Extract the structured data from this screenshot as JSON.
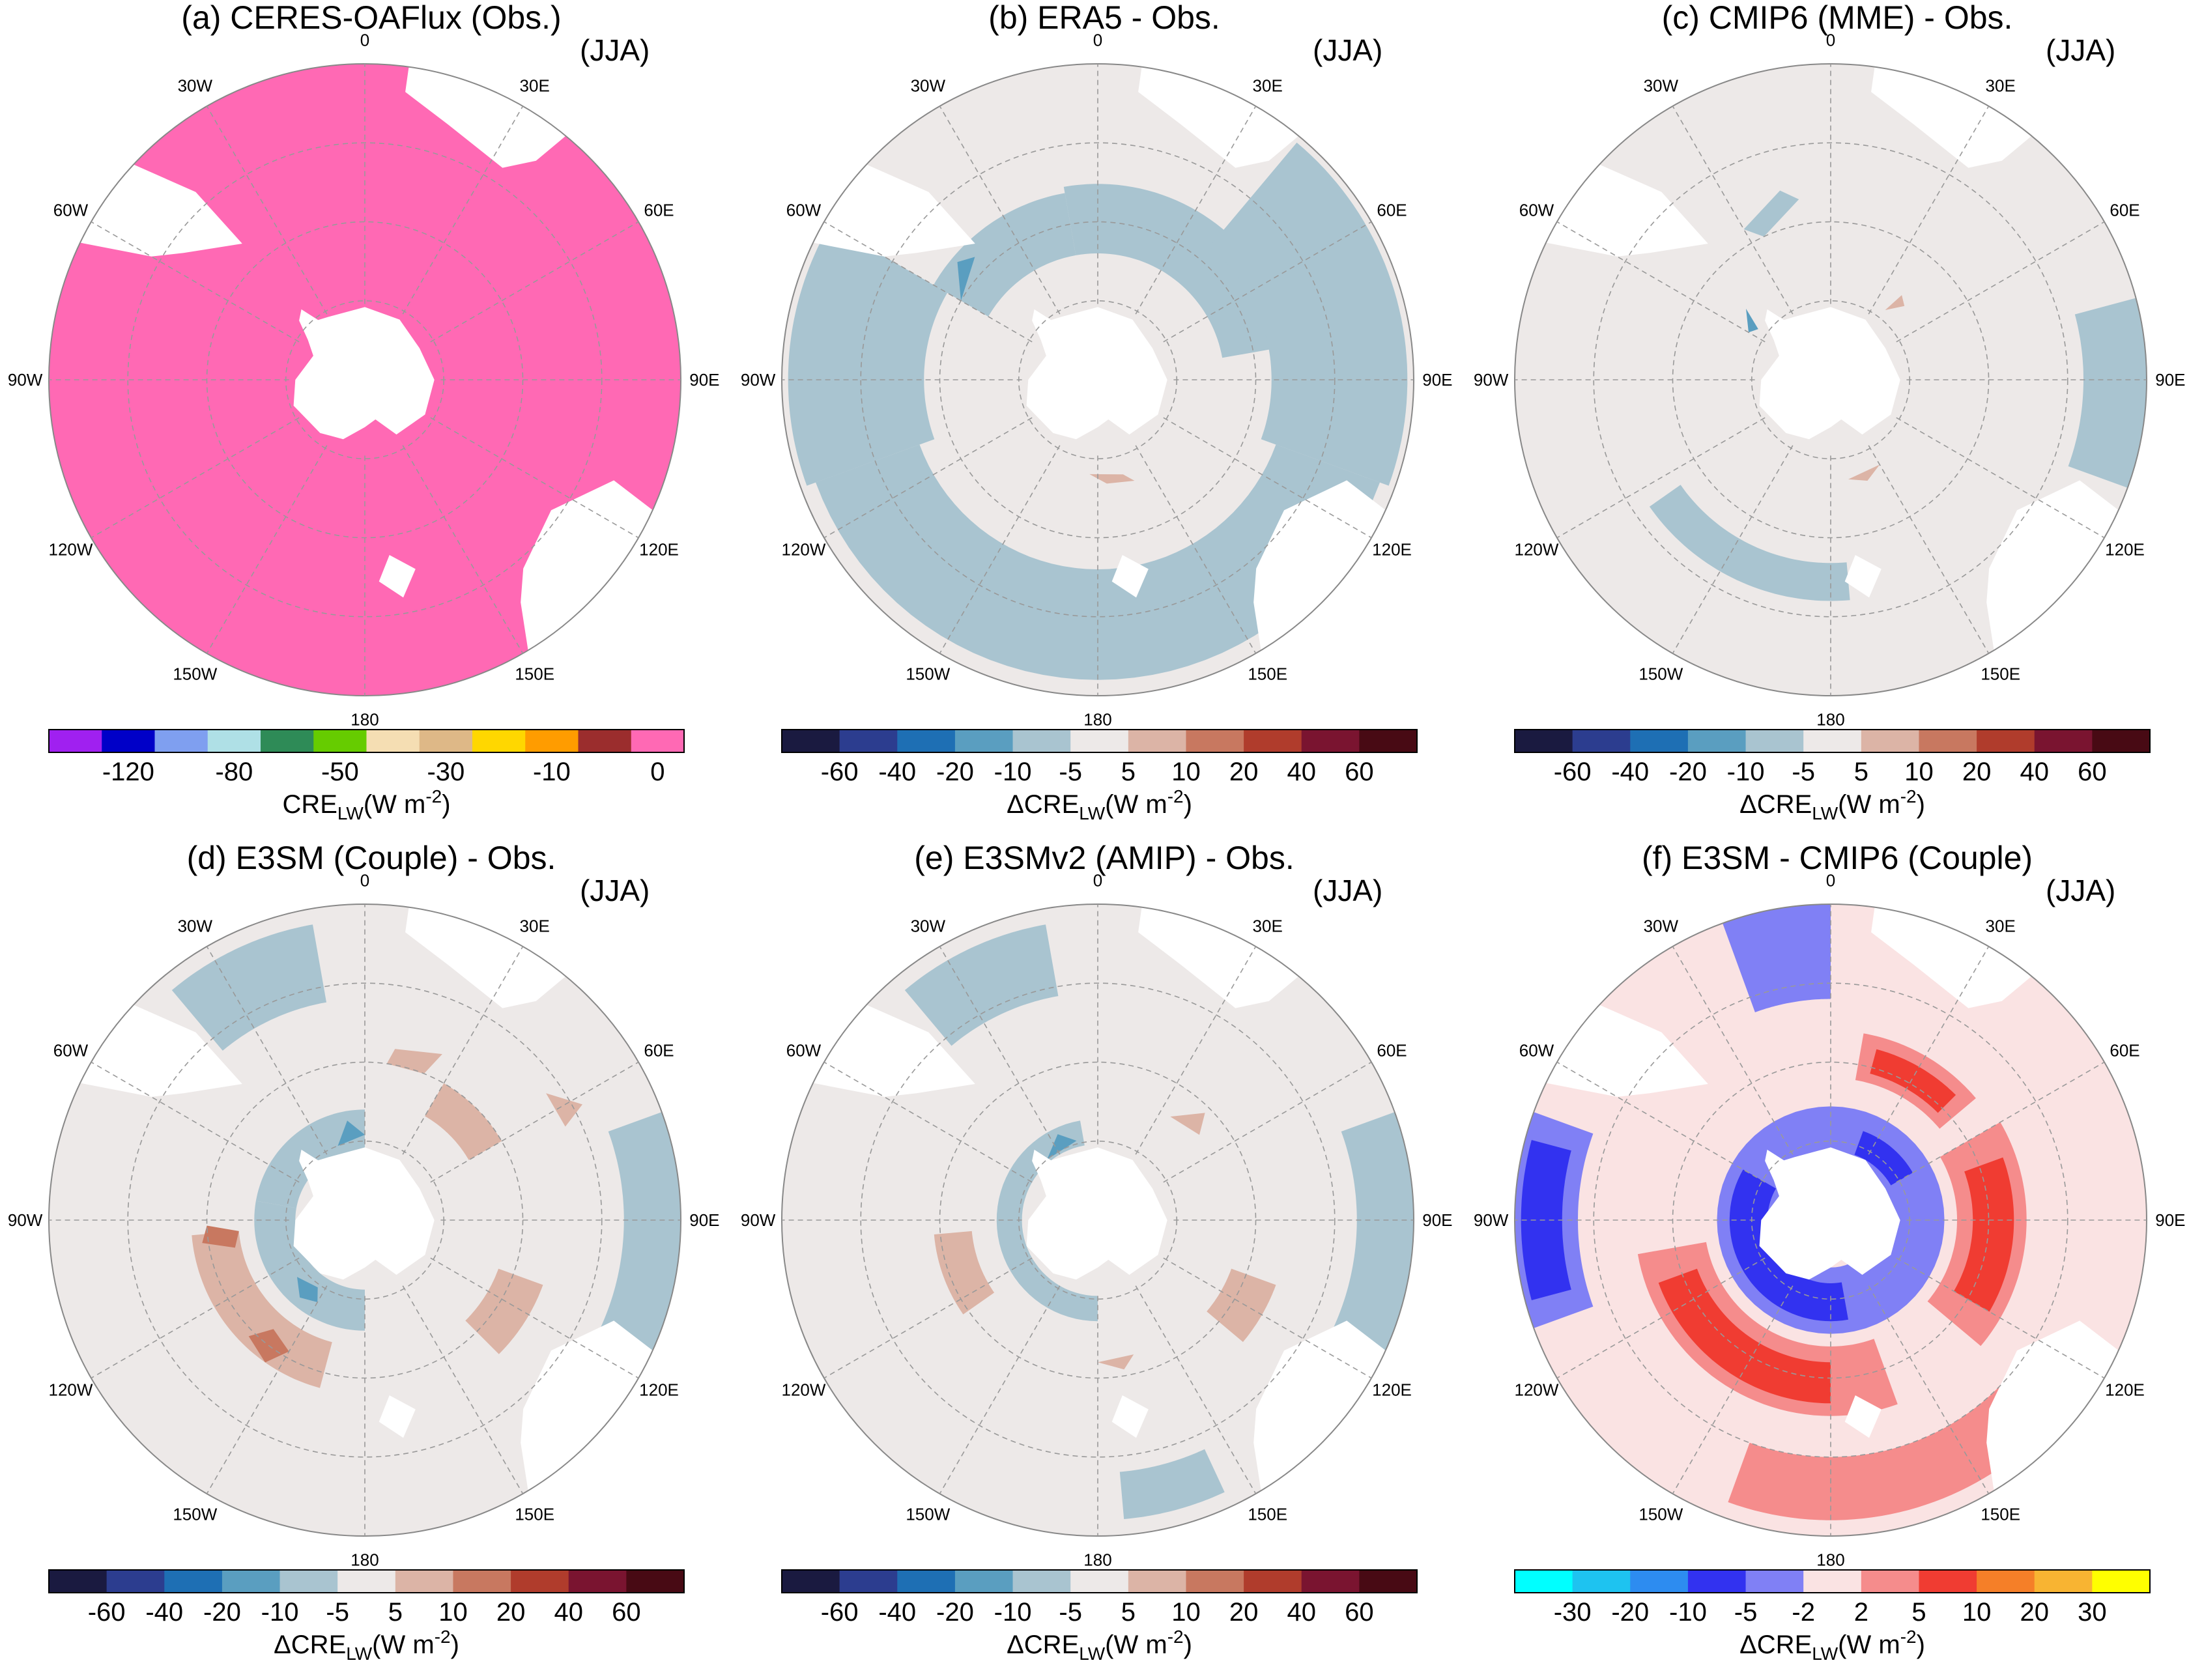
{
  "figure": {
    "panels": [
      {
        "id": "a",
        "title": "(a) CERES-OAFlux (Obs.)",
        "season": "(JJA)",
        "colorbar": {
          "ticks": [
            "-120",
            "-80",
            "-50",
            "-30",
            "-10",
            "0"
          ],
          "label_prefix": "CRE",
          "label_sub": "LW",
          "label_units": "(W m",
          "label_exp": "-2",
          "label_close": ")",
          "colors": [
            "#a020f0",
            "#0000c8",
            "#7f9ff0",
            "#afe0e6",
            "#2e8b57",
            "#66cc00",
            "#f5deb3",
            "#deb887",
            "#ffd700",
            "#ff9c00",
            "#9b2d2d",
            "#ff69b4"
          ]
        },
        "fill_color": "#ff69b4"
      },
      {
        "id": "b",
        "title": "(b) ERA5 - Obs.",
        "season": "(JJA)",
        "colorbar": {
          "ticks": [
            "-60",
            "-40",
            "-20",
            "-10",
            "-5",
            "5",
            "10",
            "20",
            "40",
            "60"
          ],
          "label_prefix": "ΔCRE",
          "label_sub": "LW",
          "label_units": "(W m",
          "label_exp": "-2",
          "label_close": ")",
          "colors": [
            "#1a1a40",
            "#2c3d8f",
            "#1e6fb4",
            "#5a9ec0",
            "#a9c4d0",
            "#ede9e8",
            "#dcb4a6",
            "#c87860",
            "#b03c2c",
            "#7a1430",
            "#480a14"
          ]
        }
      },
      {
        "id": "c",
        "title": "(c) CMIP6 (MME) - Obs.",
        "season": "(JJA)",
        "colorbar": {
          "ticks": [
            "-60",
            "-40",
            "-20",
            "-10",
            "-5",
            "5",
            "10",
            "20",
            "40",
            "60"
          ],
          "label_prefix": "ΔCRE",
          "label_sub": "LW",
          "label_units": "(W m",
          "label_exp": "-2",
          "label_close": ")",
          "colors": [
            "#1a1a40",
            "#2c3d8f",
            "#1e6fb4",
            "#5a9ec0",
            "#a9c4d0",
            "#ede9e8",
            "#dcb4a6",
            "#c87860",
            "#b03c2c",
            "#7a1430",
            "#480a14"
          ]
        }
      },
      {
        "id": "d",
        "title": "(d) E3SM (Couple) - Obs.",
        "season": "(JJA)",
        "colorbar": {
          "ticks": [
            "-60",
            "-40",
            "-20",
            "-10",
            "-5",
            "5",
            "10",
            "20",
            "40",
            "60"
          ],
          "label_prefix": "ΔCRE",
          "label_sub": "LW",
          "label_units": "(W m",
          "label_exp": "-2",
          "label_close": ")",
          "colors": [
            "#1a1a40",
            "#2c3d8f",
            "#1e6fb4",
            "#5a9ec0",
            "#a9c4d0",
            "#ede9e8",
            "#dcb4a6",
            "#c87860",
            "#b03c2c",
            "#7a1430",
            "#480a14"
          ]
        }
      },
      {
        "id": "e",
        "title": "(e) E3SMv2 (AMIP) - Obs.",
        "season": "(JJA)",
        "colorbar": {
          "ticks": [
            "-60",
            "-40",
            "-20",
            "-10",
            "-5",
            "5",
            "10",
            "20",
            "40",
            "60"
          ],
          "label_prefix": "ΔCRE",
          "label_sub": "LW",
          "label_units": "(W m",
          "label_exp": "-2",
          "label_close": ")",
          "colors": [
            "#1a1a40",
            "#2c3d8f",
            "#1e6fb4",
            "#5a9ec0",
            "#a9c4d0",
            "#ede9e8",
            "#dcb4a6",
            "#c87860",
            "#b03c2c",
            "#7a1430",
            "#480a14"
          ]
        }
      },
      {
        "id": "f",
        "title": "(f) E3SM - CMIP6 (Couple)",
        "season": "(JJA)",
        "colorbar": {
          "ticks": [
            "-30",
            "-20",
            "-10",
            "-5",
            "-2",
            "2",
            "5",
            "10",
            "20",
            "30"
          ],
          "label_prefix": "ΔCRE",
          "label_sub": "LW",
          "label_units": "(W m",
          "label_exp": "-2",
          "label_close": ")",
          "colors": [
            "#00ffff",
            "#1ec3f0",
            "#2d8cf0",
            "#3232f0",
            "#8080f5",
            "#fae3e3",
            "#f58c8c",
            "#f03c32",
            "#f57f28",
            "#f8b432",
            "#ffff00"
          ]
        }
      }
    ],
    "longitude_labels": [
      "0",
      "30E",
      "60E",
      "90E",
      "120E",
      "150E",
      "180",
      "150W",
      "120W",
      "90W",
      "60W",
      "30W"
    ]
  },
  "chart_data": [
    {
      "type": "heatmap",
      "title": "(a) CERES-OAFlux (Obs.)",
      "projection": "south-polar-stereographic",
      "season": "JJA",
      "variable": "CRE_LW",
      "units": "W m-2",
      "levels": [
        -120,
        -80,
        -50,
        -30,
        -10,
        0
      ],
      "dominant_value_range": [
        0,
        null
      ]
    },
    {
      "type": "heatmap",
      "title": "(b) ERA5 - Obs.",
      "projection": "south-polar-stereographic",
      "season": "JJA",
      "variable": "dCRE_LW",
      "units": "W m-2",
      "levels": [
        -60,
        -40,
        -20,
        -10,
        -5,
        5,
        10,
        20,
        40,
        60
      ]
    },
    {
      "type": "heatmap",
      "title": "(c) CMIP6 (MME) - Obs.",
      "projection": "south-polar-stereographic",
      "season": "JJA",
      "variable": "dCRE_LW",
      "units": "W m-2",
      "levels": [
        -60,
        -40,
        -20,
        -10,
        -5,
        5,
        10,
        20,
        40,
        60
      ]
    },
    {
      "type": "heatmap",
      "title": "(d) E3SM (Couple) - Obs.",
      "projection": "south-polar-stereographic",
      "season": "JJA",
      "variable": "dCRE_LW",
      "units": "W m-2",
      "levels": [
        -60,
        -40,
        -20,
        -10,
        -5,
        5,
        10,
        20,
        40,
        60
      ]
    },
    {
      "type": "heatmap",
      "title": "(e) E3SMv2 (AMIP) - Obs.",
      "projection": "south-polar-stereographic",
      "season": "JJA",
      "variable": "dCRE_LW",
      "units": "W m-2",
      "levels": [
        -60,
        -40,
        -20,
        -10,
        -5,
        5,
        10,
        20,
        40,
        60
      ]
    },
    {
      "type": "heatmap",
      "title": "(f) E3SM - CMIP6 (Couple)",
      "projection": "south-polar-stereographic",
      "season": "JJA",
      "variable": "dCRE_LW",
      "units": "W m-2",
      "levels": [
        -30,
        -20,
        -10,
        -5,
        -2,
        2,
        5,
        10,
        20,
        30
      ]
    }
  ]
}
